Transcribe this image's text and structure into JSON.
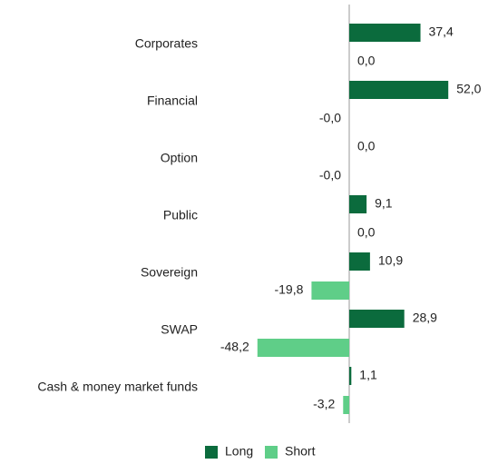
{
  "chart_data": {
    "type": "hbar",
    "categories": [
      "Corporates",
      "Financial",
      "Option",
      "Public",
      "Sovereign",
      "SWAP",
      "Cash & money market funds"
    ],
    "series": [
      {
        "name": "Long",
        "color": "#0b6b3d",
        "values": [
          37.4,
          52.0,
          0.0,
          9.1,
          10.9,
          28.9,
          1.1
        ],
        "value_labels": [
          "37,4",
          "52,0",
          "0,0",
          "9,1",
          "10,9",
          "28,9",
          "1,1"
        ]
      },
      {
        "name": "Short",
        "color": "#5fce88",
        "values": [
          0.0,
          -0.0,
          -0.0,
          0.0,
          -19.8,
          -48.2,
          -3.2
        ],
        "value_labels": [
          "0,0",
          "-0,0",
          "-0,0",
          "0,0",
          "-19,8",
          "-48,2",
          "-3,2"
        ]
      }
    ],
    "legend": "bottom"
  }
}
